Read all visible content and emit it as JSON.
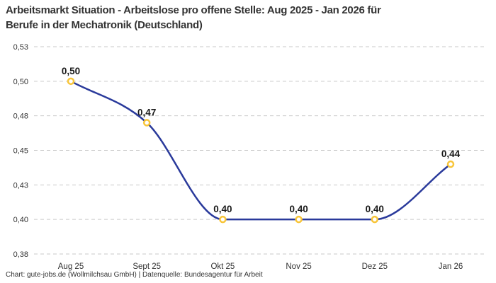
{
  "header": {
    "title_line1": "Arbeitsmarkt Situation - Arbeitslose pro offene Stelle: Aug 2025 - Jan 2026 für",
    "title_line2": "Berufe in der Mechatronik (Deutschland)"
  },
  "footer": {
    "credit": "Chart: gute-jobs.de (Wollmilchsau GmbH) | Datenquelle: Bundesagentur für Arbeit"
  },
  "chart_data": {
    "type": "line",
    "title": "Arbeitsmarkt Situation - Arbeitslose pro offene Stelle: Aug 2025 - Jan 2026 für Berufe in der Mechatronik (Deutschland)",
    "categories": [
      "Aug 25",
      "Sept 25",
      "Okt 25",
      "Nov 25",
      "Dez 25",
      "Jan 26"
    ],
    "values": [
      0.5,
      0.47,
      0.4,
      0.4,
      0.4,
      0.44
    ],
    "value_labels": [
      "0,50",
      "0,47",
      "0,40",
      "0,40",
      "0,40",
      "0,44"
    ],
    "y_ticks": {
      "values": [
        0.525,
        0.5,
        0.475,
        0.45,
        0.425,
        0.4,
        0.375
      ],
      "labels": [
        "0,53",
        "0,50",
        "0,48",
        "0,45",
        "0,43",
        "0,40",
        "0,38"
      ]
    },
    "ylim": [
      0.375,
      0.525
    ],
    "xlabel": "",
    "ylabel": "",
    "grid": "horizontal-dashed",
    "legend": "none",
    "interpolation": "monotone-spline",
    "colors": {
      "line": "#2A3A9B",
      "point_stroke": "#F8C539",
      "point_fill": "#FFFFFF",
      "grid": "#C9C9C9",
      "value_label": "#1A1A1A",
      "axis_text": "#333333",
      "title": "#333333"
    }
  }
}
